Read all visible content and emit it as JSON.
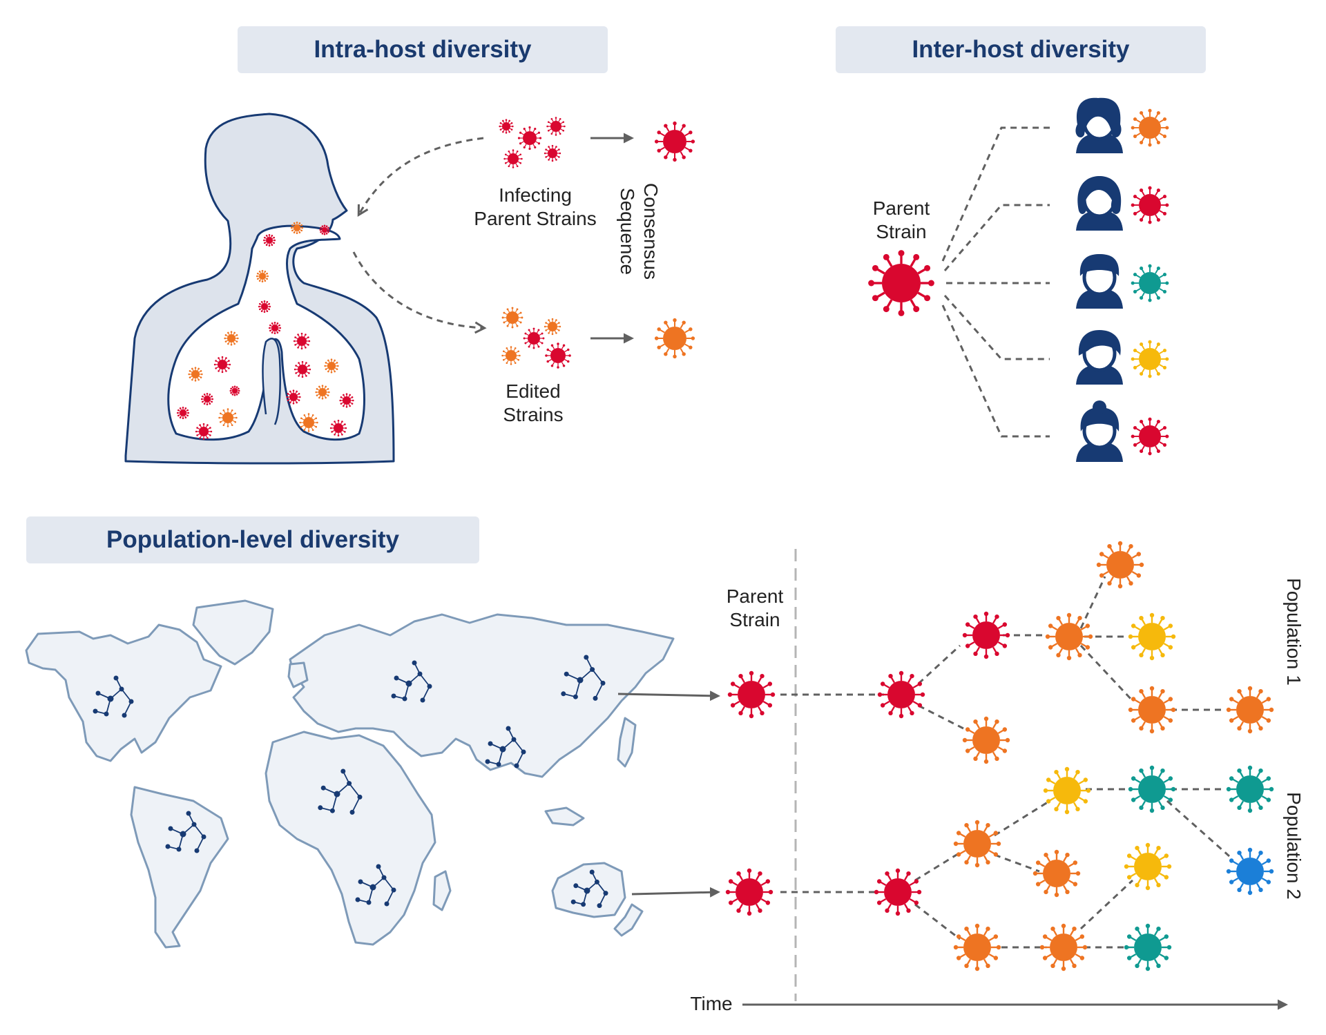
{
  "titles": {
    "intra": "Intra-host diversity",
    "inter": "Inter-host diversity",
    "population": "Population-level diversity"
  },
  "labels": {
    "infecting_l1": "Infecting",
    "infecting_l2": "Parent Strains",
    "edited_l1": "Edited",
    "edited_l2": "Strains",
    "consensus_l1": "Consensus",
    "consensus_l2": "Sequence",
    "inter_parent_l1": "Parent",
    "inter_parent_l2": "Strain",
    "pop_parent_l1": "Parent",
    "pop_parent_l2": "Strain",
    "population1": "Population 1",
    "population2": "Population 2",
    "time": "Time"
  },
  "colors": {
    "red": "#d9072f",
    "orange": "#ee7422",
    "yellow": "#f6b90c",
    "teal": "#0f9a91",
    "blue": "#1b7fd8",
    "navy": "#173a73",
    "body_fill": "#dde3ec",
    "map_fill": "#eef2f7",
    "map_stroke": "#7e9ab8",
    "line": "#606060",
    "title_bg": "#e3e8f0"
  },
  "inter_host_variants": [
    "orange",
    "red",
    "teal",
    "yellow",
    "red"
  ],
  "icons": [
    "virus-icon",
    "person-icon",
    "world-map",
    "human-respiratory-tract",
    "phylogeny-network-icon"
  ]
}
